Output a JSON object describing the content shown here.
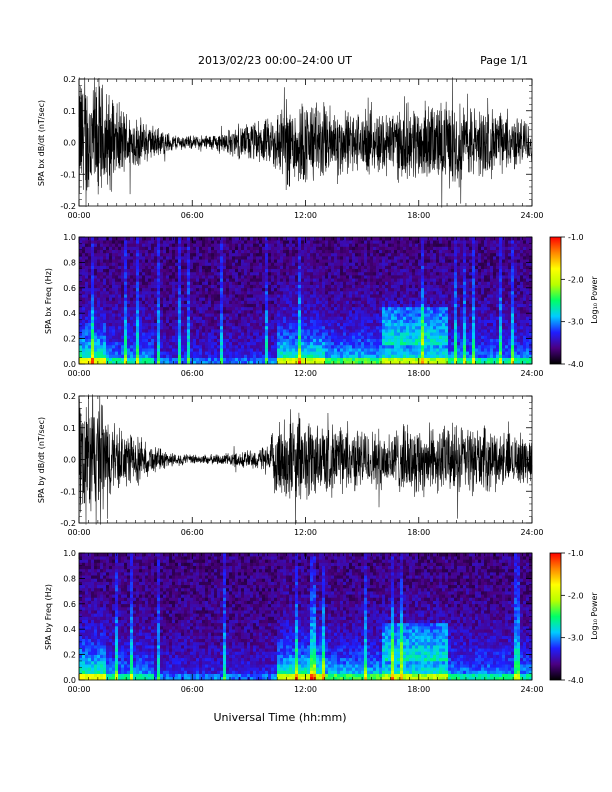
{
  "header": {
    "title": "2013/02/23  00:00–24:00 UT",
    "page": "Page 1/1"
  },
  "x_axis": {
    "label": "Universal Time (hh:mm)",
    "ticks": [
      "00:00",
      "06:00",
      "12:00",
      "18:00",
      "24:00"
    ]
  },
  "colorbar": {
    "label": "Log₁₀ Power",
    "ticks": [
      "-1.0",
      "-2.0",
      "-3.0",
      "-4.0"
    ],
    "range": [
      -4.0,
      -1.0
    ],
    "stops": [
      "#000000",
      "#4b0082",
      "#1f1fff",
      "#00ccff",
      "#00ff66",
      "#b8ff00",
      "#ffff00",
      "#ff8800",
      "#ff0000"
    ]
  },
  "chart_data": [
    {
      "type": "line",
      "ylabel": "SPA bx dB/dt (nT/sec)",
      "xlim": [
        0,
        24
      ],
      "ylim": [
        -0.2,
        0.2
      ],
      "yticks": [
        "0.2",
        "0.1",
        "0.0",
        "-0.1",
        "-0.2"
      ],
      "series_color": "#000000",
      "envelope": {
        "hours": [
          0,
          1,
          2,
          3,
          4,
          5,
          6,
          7,
          8,
          9,
          10,
          10.5,
          11,
          12,
          13,
          14,
          15,
          16,
          17,
          18,
          19,
          20,
          21,
          22,
          23,
          24
        ],
        "amplitude": [
          0.22,
          0.2,
          0.12,
          0.08,
          0.05,
          0.025,
          0.02,
          0.025,
          0.04,
          0.06,
          0.07,
          0.1,
          0.14,
          0.13,
          0.12,
          0.1,
          0.09,
          0.1,
          0.11,
          0.12,
          0.12,
          0.13,
          0.11,
          0.1,
          0.08,
          0.07
        ]
      }
    },
    {
      "type": "heatmap",
      "ylabel": "SPA bx Freq (Hz)",
      "xlim": [
        0,
        24
      ],
      "ylim": [
        0.0,
        1.0
      ],
      "yticks": [
        "1.0",
        "0.8",
        "0.6",
        "0.4",
        "0.2",
        "0.0"
      ],
      "zlabel": "Log₁₀ Power",
      "zlim": [
        -4.0,
        -1.0
      ]
    },
    {
      "type": "line",
      "ylabel": "SPA by dB/dt (nT/sec)",
      "xlim": [
        0,
        24
      ],
      "ylim": [
        -0.2,
        0.2
      ],
      "yticks": [
        "0.2",
        "0.1",
        "0.0",
        "-0.1",
        "-0.2"
      ],
      "series_color": "#000000",
      "envelope": {
        "hours": [
          0,
          1,
          2,
          3,
          4,
          5,
          6,
          7,
          8,
          9,
          10,
          10.5,
          11,
          12,
          13,
          14,
          15,
          16,
          17,
          18,
          19,
          20,
          21,
          22,
          23,
          24
        ],
        "amplitude": [
          0.22,
          0.2,
          0.1,
          0.07,
          0.04,
          0.02,
          0.015,
          0.015,
          0.02,
          0.03,
          0.04,
          0.12,
          0.14,
          0.13,
          0.11,
          0.1,
          0.09,
          0.09,
          0.1,
          0.11,
          0.1,
          0.11,
          0.1,
          0.09,
          0.08,
          0.07
        ]
      }
    },
    {
      "type": "heatmap",
      "ylabel": "SPA by Freq (Hz)",
      "xlim": [
        0,
        24
      ],
      "ylim": [
        0.0,
        1.0
      ],
      "yticks": [
        "1.0",
        "0.8",
        "0.6",
        "0.4",
        "0.2",
        "0.0"
      ],
      "zlabel": "Log₁₀ Power",
      "zlim": [
        -4.0,
        -1.0
      ]
    }
  ]
}
